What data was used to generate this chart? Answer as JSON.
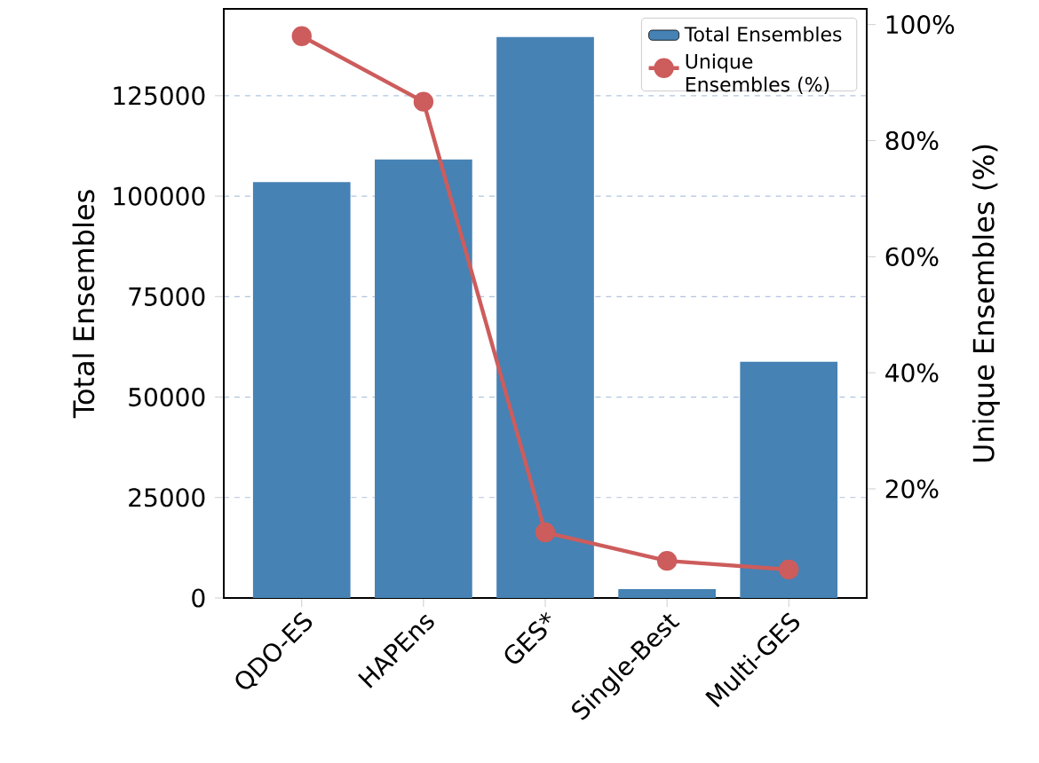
{
  "chart_data": {
    "type": "bar",
    "categories": [
      "QDO-ES",
      "HAPEns",
      "GES*",
      "Single-Best",
      "Multi-GES"
    ],
    "series": [
      {
        "name": "Total Ensembles",
        "color": "#4682b4",
        "values": [
          103500,
          109100,
          139600,
          2200,
          58800
        ]
      },
      {
        "name": "Unique Ensembles (%)",
        "type": "line",
        "axis": "y2",
        "color": "#cd5c5c",
        "marker": "circle",
        "values": [
          98.0,
          86.7,
          12.5,
          7.6,
          6.1
        ]
      }
    ],
    "ylabel": "Total Ensembles",
    "y2label": "Unique Ensembles (%)",
    "ylim": [
      0,
      146600
    ],
    "yticks": [
      0,
      25000,
      50000,
      75000,
      100000,
      125000
    ],
    "y2lim": [
      1.2,
      102.7
    ],
    "y2ticks": [
      {
        "value": 20,
        "label": "20%"
      },
      {
        "value": 40,
        "label": "40%"
      },
      {
        "value": 60,
        "label": "60%"
      },
      {
        "value": 80,
        "label": "80%"
      },
      {
        "value": 100,
        "label": "100%"
      }
    ],
    "grid": "y",
    "legend": "top right"
  }
}
